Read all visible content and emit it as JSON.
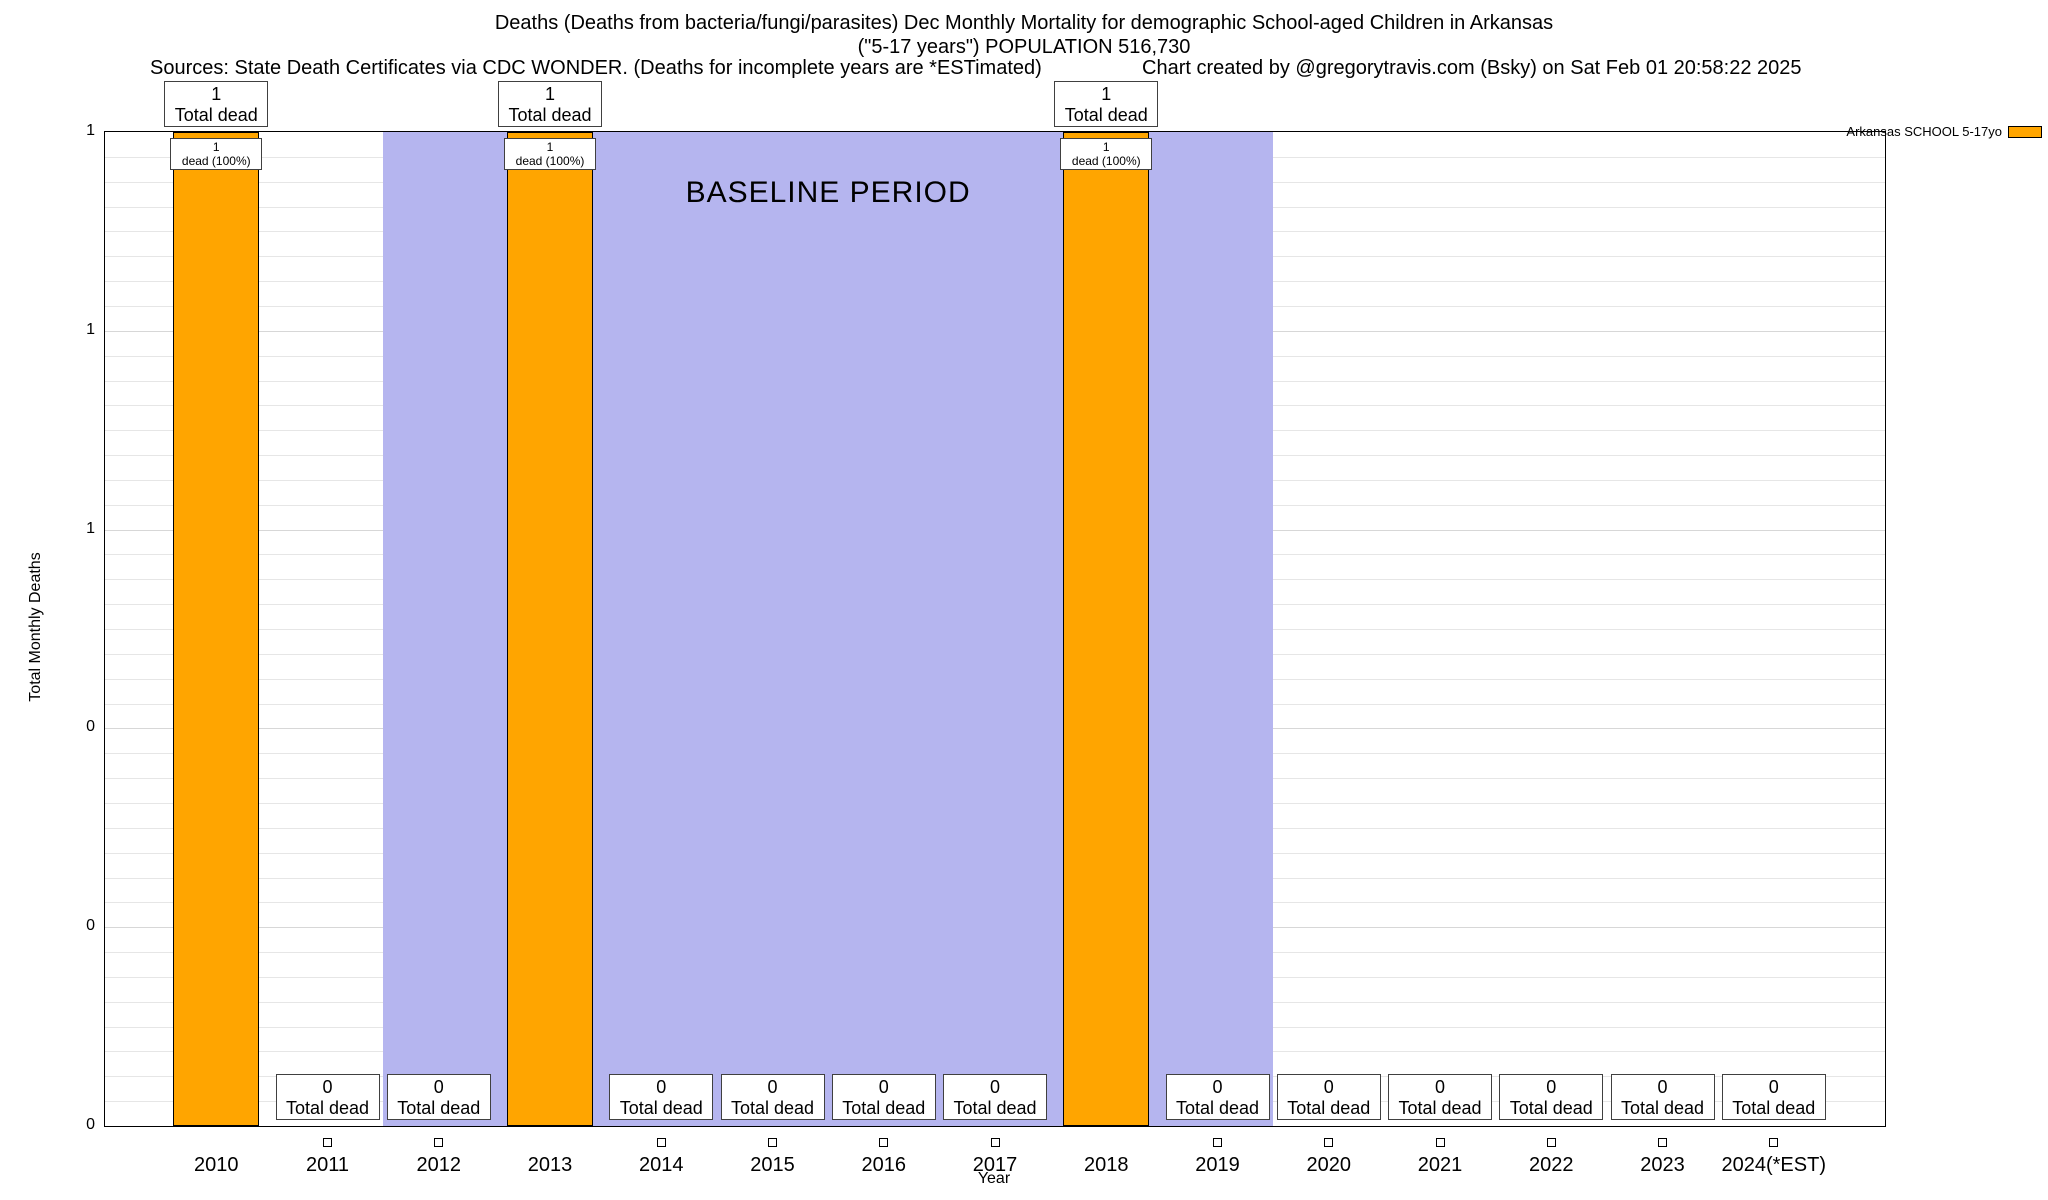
{
  "title": {
    "line1": "Deaths (Deaths from bacteria/fungi/parasites) Dec Monthly Mortality for demographic School-aged Children in Arkansas",
    "line2": "(\"5-17 years\") POPULATION 516,730",
    "sources": "Sources: State Death Certificates via CDC WONDER. (Deaths for incomplete years are *ESTimated)",
    "credit": "Chart created by @gregorytravis.com (Bsky) on Sat Feb 01 20:58:22 2025"
  },
  "chart_data": {
    "type": "bar",
    "categories": [
      "2010",
      "2011",
      "2012",
      "2013",
      "2014",
      "2015",
      "2016",
      "2017",
      "2018",
      "2019",
      "2020",
      "2021",
      "2022",
      "2023",
      "2024(*EST)"
    ],
    "values": [
      1,
      0,
      0,
      1,
      0,
      0,
      0,
      0,
      1,
      0,
      0,
      0,
      0,
      0,
      0
    ],
    "series_name": "Arkansas SCHOOL 5-17yo",
    "bar_color": "#FFA500",
    "xlabel": "Year",
    "ylabel": "Total Monthly Deaths",
    "ylim": [
      0,
      1
    ],
    "yticks": [
      {
        "pos": 0.0,
        "label": "0"
      },
      {
        "pos": 0.2,
        "label": "0"
      },
      {
        "pos": 0.4,
        "label": "0"
      },
      {
        "pos": 0.6,
        "label": "1"
      },
      {
        "pos": 0.8,
        "label": "1"
      },
      {
        "pos": 1.0,
        "label": "1"
      }
    ],
    "baseline": {
      "label": "BASELINE PERIOD",
      "start_category": "2012",
      "end_category": "2019",
      "color": "#b5b5ef"
    },
    "annotations": {
      "total_label": "Total dead",
      "inbar_label": "dead (100%)"
    },
    "grid": true,
    "legend_position": "top-right"
  }
}
